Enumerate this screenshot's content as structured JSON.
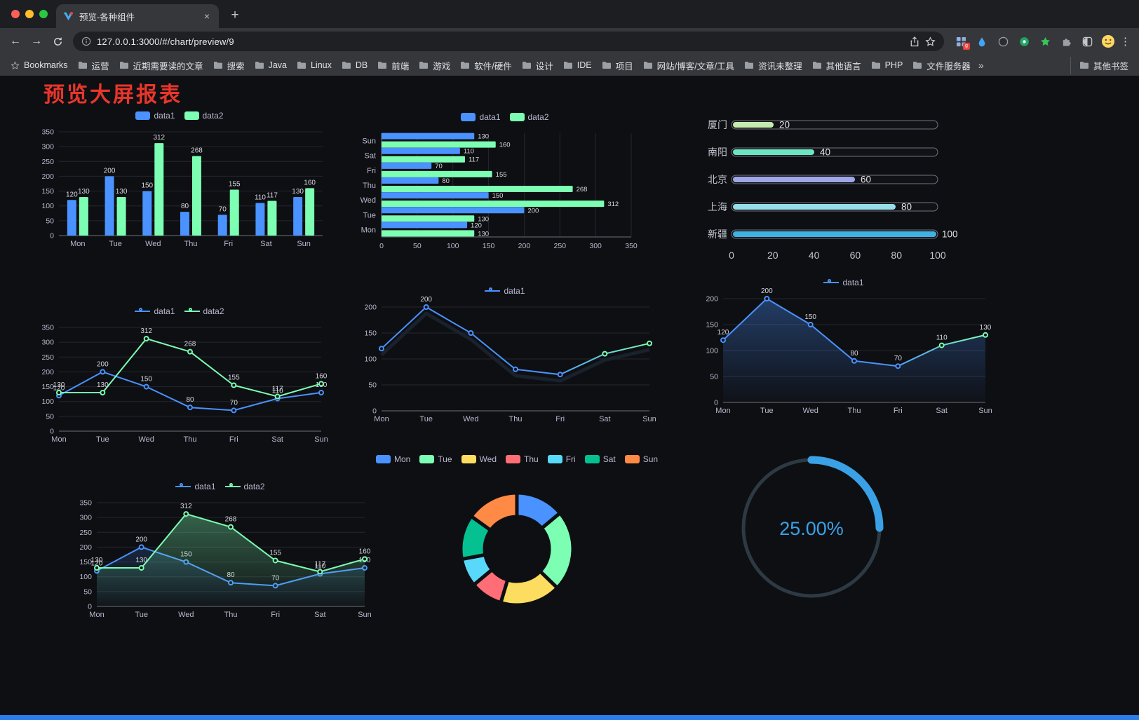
{
  "browser": {
    "tab_title": "预览-各种组件",
    "new_tab_label": "+",
    "close_tab_label": "×",
    "url": "127.0.0.1:3000/#/chart/preview/9",
    "nav": {
      "back": "←",
      "forward": "→"
    },
    "menu_dots": "⋮",
    "extensions": [
      {
        "name": "screenshot-grid-ext",
        "badge": "g"
      },
      {
        "name": "blue-drop-ext"
      },
      {
        "name": "dark-circle-ext"
      },
      {
        "name": "green-circle-ext"
      },
      {
        "name": "green-star-ext"
      },
      {
        "name": "puzzle-ext"
      },
      {
        "name": "dark-reader-ext"
      }
    ],
    "bookmarks": {
      "items": [
        {
          "label": "Bookmarks",
          "icon": "star"
        },
        {
          "label": "运营",
          "icon": "folder"
        },
        {
          "label": "近期需要读的文章",
          "icon": "folder"
        },
        {
          "label": "搜索",
          "icon": "folder"
        },
        {
          "label": "Java",
          "icon": "folder"
        },
        {
          "label": "Linux",
          "icon": "folder"
        },
        {
          "label": "DB",
          "icon": "folder"
        },
        {
          "label": "前端",
          "icon": "folder"
        },
        {
          "label": "游戏",
          "icon": "folder"
        },
        {
          "label": "软件/硬件",
          "icon": "folder"
        },
        {
          "label": "设计",
          "icon": "folder"
        },
        {
          "label": "IDE",
          "icon": "folder"
        },
        {
          "label": "项目",
          "icon": "folder"
        },
        {
          "label": "网站/博客/文章/工具",
          "icon": "folder"
        },
        {
          "label": "资讯未整理",
          "icon": "folder"
        },
        {
          "label": "其他语言",
          "icon": "folder"
        },
        {
          "label": "PHP",
          "icon": "folder"
        },
        {
          "label": "文件服务器",
          "icon": "folder"
        }
      ],
      "overflow_chevron": "»",
      "other_bookmarks": {
        "label": "其他书签",
        "icon": "folder"
      }
    }
  },
  "page": {
    "title": "预览大屏报表",
    "title_color": "#e8362a"
  },
  "chart_data": [
    {
      "type": "bar",
      "legend": [
        "data1",
        "data2"
      ],
      "categories": [
        "Mon",
        "Tue",
        "Wed",
        "Thu",
        "Fri",
        "Sat",
        "Sun"
      ],
      "series": [
        {
          "name": "data1",
          "color": "#4992ff",
          "values": [
            120,
            200,
            150,
            80,
            70,
            110,
            130
          ]
        },
        {
          "name": "data2",
          "color": "#7cffb2",
          "values": [
            130,
            130,
            312,
            268,
            155,
            117,
            160
          ]
        }
      ],
      "ylim": [
        0,
        350
      ],
      "ytick": 50,
      "grid": true,
      "legend_pos": "top"
    },
    {
      "type": "hbar",
      "legend": [
        "data1",
        "data2"
      ],
      "categories": [
        "Mon",
        "Tue",
        "Wed",
        "Thu",
        "Fri",
        "Sat",
        "Sun"
      ],
      "series": [
        {
          "name": "data1",
          "color": "#4992ff",
          "values": [
            120,
            200,
            150,
            80,
            70,
            110,
            130
          ]
        },
        {
          "name": "data2",
          "color": "#7cffb2",
          "values": [
            130,
            130,
            312,
            268,
            155,
            117,
            160
          ]
        }
      ],
      "xlim": [
        0,
        350
      ],
      "xtick": 50,
      "grid": true,
      "legend_pos": "top"
    },
    {
      "type": "progress",
      "max": 100,
      "xticks": [
        0,
        20,
        40,
        60,
        80,
        100
      ],
      "rows": [
        {
          "label": "厦门",
          "value": 20,
          "color": "#c4ebad"
        },
        {
          "label": "南阳",
          "value": 40,
          "color": "#6be6c1"
        },
        {
          "label": "北京",
          "value": 60,
          "color": "#a0a7e6"
        },
        {
          "label": "上海",
          "value": 80,
          "color": "#96dee8"
        },
        {
          "label": "新疆",
          "value": 100,
          "color": "#3fb1e3"
        }
      ]
    },
    {
      "type": "line",
      "legend": [
        "data1",
        "data2"
      ],
      "categories": [
        "Mon",
        "Tue",
        "Wed",
        "Thu",
        "Fri",
        "Sat",
        "Sun"
      ],
      "series": [
        {
          "name": "data1",
          "color": "#4992ff",
          "values": [
            120,
            200,
            150,
            80,
            70,
            110,
            130
          ]
        },
        {
          "name": "data2",
          "color": "#7cffb2",
          "values": [
            130,
            130,
            312,
            268,
            155,
            117,
            160
          ]
        }
      ],
      "ylim": [
        0,
        350
      ],
      "ytick": 50,
      "grid": true,
      "legend_pos": "top"
    },
    {
      "type": "line",
      "legend": [
        "data1"
      ],
      "shadow": true,
      "categories": [
        "Mon",
        "Tue",
        "Wed",
        "Thu",
        "Fri",
        "Sat",
        "Sun"
      ],
      "series": [
        {
          "name": "data1",
          "color": "#4992ff",
          "gradient": [
            "#4992ff",
            "#7cffb2"
          ],
          "values": [
            120,
            200,
            150,
            80,
            70,
            110,
            130
          ],
          "label_values": [
            null,
            200,
            null,
            null,
            null,
            null,
            null
          ]
        }
      ],
      "ylim": [
        0,
        200
      ],
      "ytick": 50,
      "grid": true,
      "legend_pos": "top"
    },
    {
      "type": "line",
      "legend": [
        "data1"
      ],
      "categories": [
        "Mon",
        "Tue",
        "Wed",
        "Thu",
        "Fri",
        "Sat",
        "Sun"
      ],
      "series": [
        {
          "name": "data1",
          "color": "#4992ff",
          "gradient": [
            "#4992ff",
            "#7cffb2"
          ],
          "area": true,
          "area_opacity": 0.35,
          "values": [
            120,
            200,
            150,
            80,
            70,
            110,
            130
          ]
        }
      ],
      "ylim": [
        0,
        200
      ],
      "ytick": 50,
      "grid": true,
      "legend_pos": "top"
    },
    {
      "type": "line",
      "legend": [
        "data1",
        "data2"
      ],
      "categories": [
        "Mon",
        "Tue",
        "Wed",
        "Thu",
        "Fri",
        "Sat",
        "Sun"
      ],
      "series": [
        {
          "name": "data1",
          "color": "#4992ff",
          "area": true,
          "area_opacity": 0.18,
          "values": [
            120,
            200,
            150,
            80,
            70,
            110,
            130
          ]
        },
        {
          "name": "data2",
          "color": "#7cffb2",
          "area": true,
          "area_opacity": 0.35,
          "values": [
            130,
            130,
            312,
            268,
            155,
            117,
            160
          ]
        }
      ],
      "ylim": [
        0,
        350
      ],
      "ytick": 50,
      "grid": true,
      "legend_pos": "top"
    },
    {
      "type": "donut",
      "legend": [
        "Mon",
        "Tue",
        "Wed",
        "Thu",
        "Fri",
        "Sat",
        "Sun"
      ],
      "slices": [
        {
          "name": "Mon",
          "value": 120,
          "color": "#4992ff"
        },
        {
          "name": "Tue",
          "value": 200,
          "color": "#7cffb2"
        },
        {
          "name": "Wed",
          "value": 150,
          "color": "#fddd60"
        },
        {
          "name": "Thu",
          "value": 80,
          "color": "#ff6e76"
        },
        {
          "name": "Fri",
          "value": 70,
          "color": "#58d9f9"
        },
        {
          "name": "Sat",
          "value": 110,
          "color": "#05c091"
        },
        {
          "name": "Sun",
          "value": 130,
          "color": "#ff8a45"
        }
      ]
    },
    {
      "type": "gauge",
      "label": "25.00%",
      "percent": 25,
      "color": "#3aa1e6",
      "track": "#2d3a43"
    }
  ]
}
